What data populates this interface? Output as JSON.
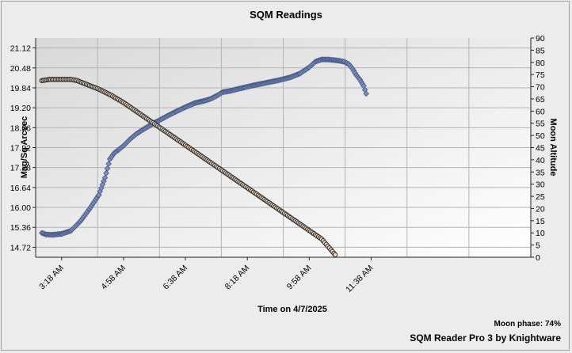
{
  "chart_data": {
    "type": "line",
    "title": "SQM Readings",
    "xlabel": "Time on 4/7/2025",
    "ylabel": "Mag/Sq Arcsec",
    "y2label": "Moon Altitude",
    "x_start": "2:38 AM",
    "x_step_minutes": 100,
    "x_tick_labels": [
      "3:18 AM",
      "4:58 AM",
      "6:38 AM",
      "8:18 AM",
      "9:58 AM",
      "11:38 AM"
    ],
    "x_tick_minutes": [
      200,
      300,
      400,
      500,
      600,
      700
    ],
    "xlim_minutes": [
      158,
      958
    ],
    "ylim": [
      14.4,
      21.44
    ],
    "y_ticks": [
      "21.12",
      "20.48",
      "19.84",
      "19.20",
      "18.56",
      "17.92",
      "17.28",
      "16.64",
      "16.00",
      "15.36",
      "14.72"
    ],
    "y2lim": [
      0,
      90
    ],
    "y2_ticks": [
      0,
      5,
      10,
      15,
      20,
      25,
      30,
      35,
      40,
      45,
      50,
      55,
      60,
      65,
      70,
      75,
      80,
      85,
      90
    ],
    "grid": true,
    "series": [
      {
        "name": "",
        "axis": "left",
        "color": "#4a5d8c",
        "marker": "diamond",
        "x_minutes": [
          168,
          175,
          185,
          200,
          215,
          230,
          245,
          260,
          270,
          278,
          285,
          292,
          300,
          310,
          320,
          330,
          340,
          350,
          360,
          372,
          385,
          400,
          415,
          430,
          440,
          452,
          460,
          466,
          472,
          480,
          495,
          510,
          530,
          550,
          570,
          585,
          600,
          610,
          620,
          630,
          640,
          648,
          656,
          664,
          670,
          676,
          682,
          688,
          692
        ],
        "values": [
          15.18,
          15.13,
          15.12,
          15.15,
          15.25,
          15.55,
          15.95,
          16.4,
          16.95,
          17.55,
          17.75,
          17.85,
          17.98,
          18.18,
          18.35,
          18.48,
          18.6,
          18.72,
          18.82,
          18.95,
          19.08,
          19.22,
          19.35,
          19.42,
          19.48,
          19.6,
          19.7,
          19.72,
          19.74,
          19.78,
          19.85,
          19.92,
          20.0,
          20.08,
          20.18,
          20.3,
          20.5,
          20.68,
          20.75,
          20.75,
          20.73,
          20.71,
          20.68,
          20.6,
          20.45,
          20.25,
          20.1,
          19.9,
          19.65
        ]
      },
      {
        "name": "",
        "axis": "right",
        "color": "#2a2a2a",
        "fill": "#f0d8c0",
        "marker": "circle",
        "x_minutes": [
          168,
          180,
          200,
          215,
          225,
          235,
          245,
          260,
          280,
          300,
          320,
          340,
          360,
          380,
          400,
          420,
          440,
          460,
          480,
          500,
          520,
          540,
          560,
          580,
          600,
          620,
          642
        ],
        "values": [
          72.5,
          73,
          73,
          73,
          72.5,
          71.5,
          70.5,
          69,
          66.5,
          63.5,
          60,
          56.5,
          53,
          49.5,
          46,
          42.5,
          39,
          35.5,
          32,
          28.5,
          25,
          21.5,
          18,
          14.5,
          11,
          7.5,
          1
        ]
      }
    ]
  },
  "footer": {
    "moon_phase": "Moon phase: 74%",
    "credit": "SQM Reader Pro 3 by Knightware"
  }
}
